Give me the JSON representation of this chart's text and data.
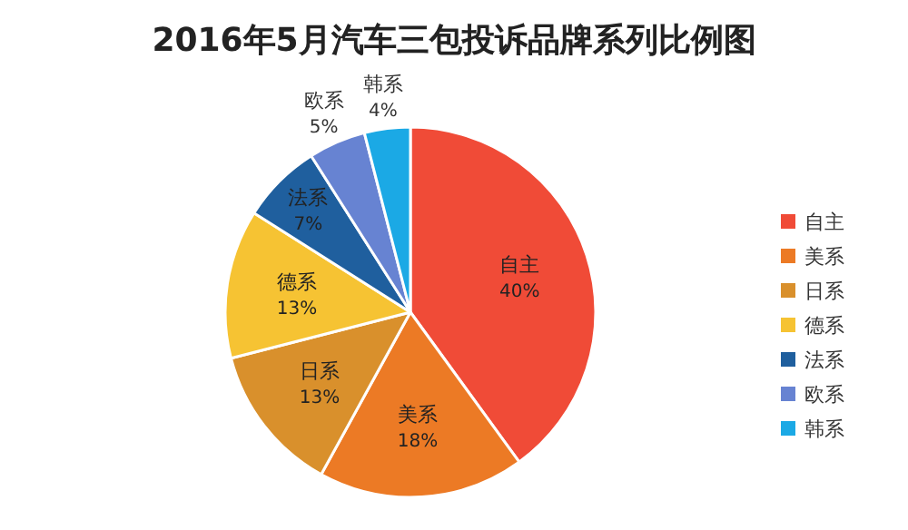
{
  "chart_data": {
    "type": "pie",
    "title": "2016年5月汽车三包投诉品牌系列比例图",
    "categories": [
      "自主",
      "美系",
      "日系",
      "德系",
      "法系",
      "欧系",
      "韩系"
    ],
    "values": [
      40,
      18,
      13,
      13,
      7,
      5,
      4
    ],
    "colors": [
      "#f04b37",
      "#ec7a25",
      "#d9902c",
      "#f6c333",
      "#1f5f9e",
      "#6783d2",
      "#1ba9e5"
    ],
    "value_labels": [
      "40%",
      "18%",
      "13%",
      "13%",
      "7%",
      "5%",
      "4%"
    ],
    "legend": "right"
  }
}
